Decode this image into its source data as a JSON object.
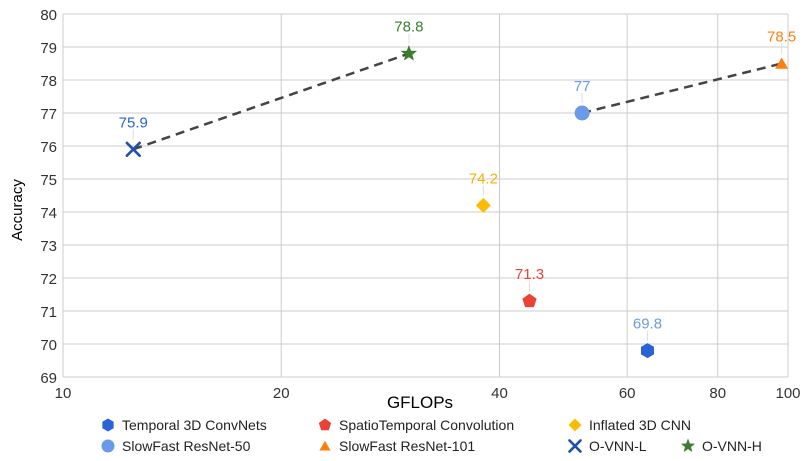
{
  "chart_data": {
    "type": "scatter",
    "title": "",
    "xlabel": "GFLOPs",
    "ylabel": "Accuracy",
    "x_scale": "log",
    "xlim": [
      10,
      100
    ],
    "ylim": [
      69,
      80
    ],
    "x_ticks": [
      10,
      20,
      40,
      60,
      80,
      100
    ],
    "x_tick_labels": [
      "10",
      "20",
      "40",
      "60",
      "80",
      "100"
    ],
    "y_ticks": [
      69,
      70,
      71,
      72,
      73,
      74,
      75,
      76,
      77,
      78,
      79,
      80
    ],
    "y_tick_labels": [
      "69",
      "70",
      "71",
      "72",
      "73",
      "74",
      "75",
      "76",
      "77",
      "78",
      "79",
      "80"
    ],
    "grid": true,
    "legend_position": "bottom",
    "series": [
      {
        "name": "Temporal 3D ConvNets",
        "marker": "hexagon",
        "color": "#2a63d6",
        "label_color": "#6b9ae8",
        "x": 64,
        "y": 69.8,
        "label": "69.8"
      },
      {
        "name": "SpatioTemporal Convolution",
        "marker": "pentagon",
        "color": "#ea4335",
        "label_color": "#ea4335",
        "x": 44,
        "y": 71.3,
        "label": "71.3"
      },
      {
        "name": "Inflated 3D CNN",
        "marker": "diamond",
        "color": "#fbbc04",
        "label_color": "#f4b400",
        "x": 38,
        "y": 74.2,
        "label": "74.2"
      },
      {
        "name": "SlowFast ResNet-50",
        "marker": "circle",
        "color": "#6b9ae8",
        "label_color": "#6b9ae8",
        "x": 52,
        "y": 77,
        "label": "77"
      },
      {
        "name": "SlowFast ResNet-101",
        "marker": "triangle",
        "color": "#ff7f0e",
        "label_color": "#ff7f0e",
        "x": 98,
        "y": 78.5,
        "label": "78.5"
      },
      {
        "name": "O-VNN-L",
        "marker": "x",
        "color": "#1f4fb0",
        "label_color": "#2a63d6",
        "x": 12.5,
        "y": 75.9,
        "label": "75.9"
      },
      {
        "name": "O-VNN-H",
        "marker": "star",
        "color": "#3a7d2c",
        "label_color": "#3a7d2c",
        "x": 30,
        "y": 78.8,
        "label": "78.8"
      }
    ],
    "dashed_lines": [
      {
        "from": "O-VNN-L",
        "to": "O-VNN-H"
      },
      {
        "from": "SlowFast ResNet-50",
        "to": "SlowFast ResNet-101"
      }
    ]
  }
}
